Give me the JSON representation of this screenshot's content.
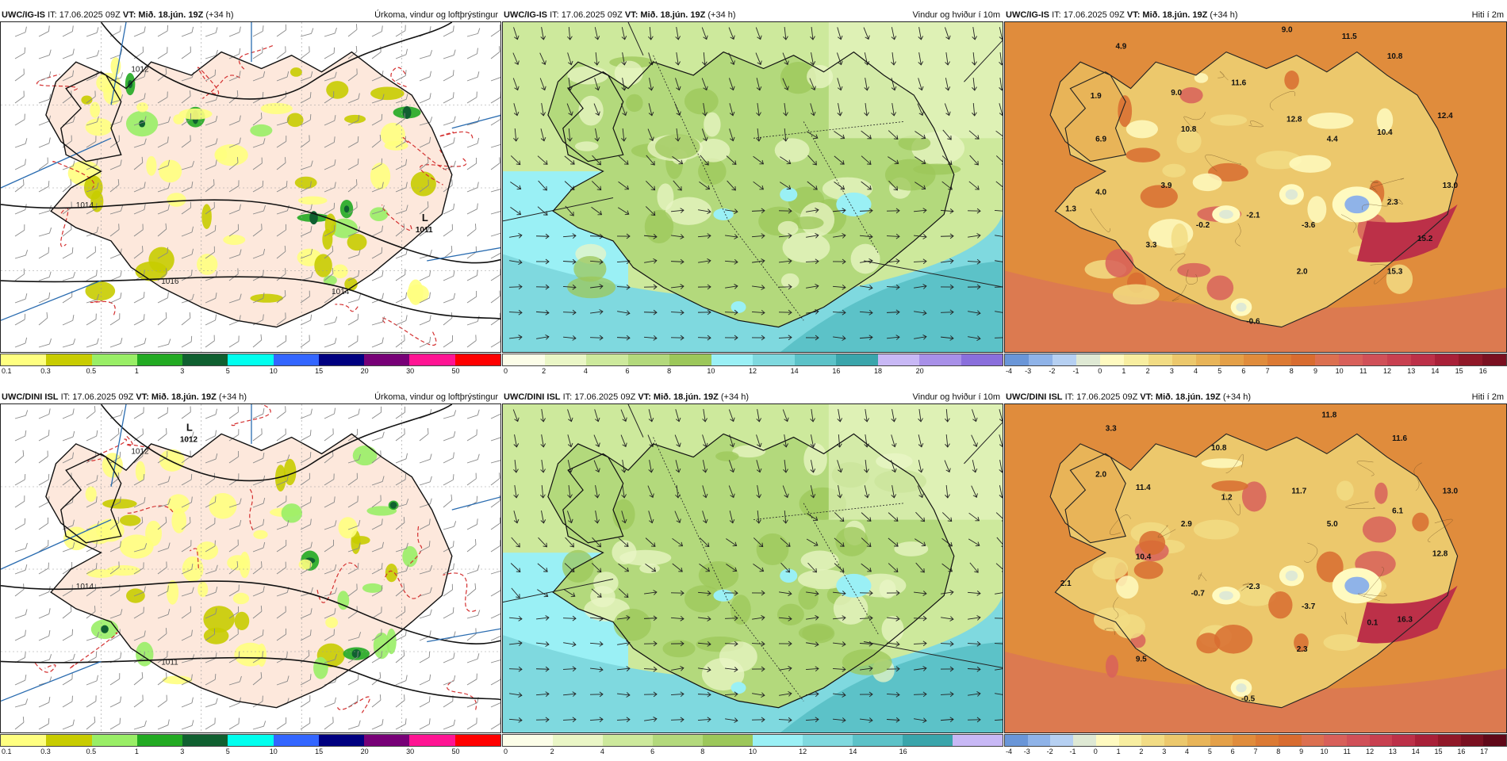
{
  "rows": [
    {
      "model_label": "UWC/IG-IS",
      "panels": [
        {
          "type": "precip",
          "model": "UWC/IG-IS",
          "it": "IT: 17.06.2025 09Z",
          "vt": "VT: Mið. 18.jún. 19Z",
          "lead": "(+34 h)",
          "title": "Úrkoma, vindur og loftþrýstingur",
          "legend_ticks": [
            "0.1",
            "0.3",
            "0.5",
            "1",
            "3",
            "5",
            "10",
            "15",
            "20",
            "30",
            "50"
          ],
          "legend_colors": [
            "#ffff80",
            "#c8cc00",
            "#99ee66",
            "#22aa22",
            "#106030",
            "#00ffee",
            "#3366ff",
            "#000080",
            "#770077",
            "#ff1493",
            "#ff0000"
          ],
          "isobar_labels": [
            "1012",
            "1014",
            "1016",
            "1014"
          ],
          "lows": [
            {
              "symbol": "L",
              "value": "1011"
            }
          ]
        },
        {
          "type": "wind",
          "model": "UWC/IG-IS",
          "it": "IT: 17.06.2025 09Z",
          "vt": "VT: Mið. 18.jún. 19Z",
          "lead": "(+34 h)",
          "title": "Vindur og hviður í 10m",
          "legend_ticks": [
            "0",
            "2",
            "4",
            "6",
            "8",
            "10",
            "12",
            "14",
            "16",
            "18",
            "20"
          ],
          "legend_colors": [
            "#fcfde8",
            "#eaf6c6",
            "#cde99c",
            "#b3d97c",
            "#9cc75a",
            "#9af0f5",
            "#7fd9df",
            "#5cc2c8",
            "#3aa5ab",
            "#c8b8f5",
            "#a890e8",
            "#8a6fdc"
          ]
        },
        {
          "type": "temp",
          "model": "UWC/IG-IS",
          "it": "IT: 17.06.2025 09Z",
          "vt": "VT: Mið. 18.jún. 19Z",
          "lead": "(+34 h)",
          "title": "Hiti í 2m",
          "legend_ticks": [
            "-4",
            "-3",
            "-2",
            "-1",
            "0",
            "1",
            "2",
            "3",
            "4",
            "5",
            "6",
            "7",
            "8",
            "9",
            "10",
            "11",
            "12",
            "13",
            "14",
            "15",
            "16"
          ],
          "legend_colors": [
            "#6a96d8",
            "#8fb3e8",
            "#b6d0f2",
            "#dfe9d4",
            "#fffac0",
            "#f8eea0",
            "#f2dc84",
            "#ecc86c",
            "#e8b458",
            "#e4a048",
            "#e08c3c",
            "#dc7a34",
            "#d86c30",
            "#dc7050",
            "#d8605a",
            "#d05058",
            "#c84050",
            "#bc3048",
            "#a82038",
            "#901828",
            "#7a1020"
          ],
          "temp_labels": [
            "4.9",
            "9.0",
            "11.5",
            "10.8",
            "1.9",
            "9.0",
            "11.6",
            "12.8",
            "12.4",
            "6.9",
            "10.8",
            "4.4",
            "10.4",
            "1.3",
            "4.0",
            "3.9",
            "-0.2",
            "-2.1",
            "13.0",
            "2.3",
            "3.3",
            "-3.6",
            "15.2",
            "2.0",
            "15.3",
            "-0.6"
          ]
        }
      ]
    },
    {
      "model_label": "UWC/DINI ISL",
      "panels": [
        {
          "type": "precip",
          "model": "UWC/DINI ISL",
          "it": "IT: 17.06.2025 09Z",
          "vt": "VT: Mið. 18.jún. 19Z",
          "lead": "(+34 h)",
          "title": "Úrkoma, vindur og loftþrýstingur",
          "legend_ticks": [
            "0.1",
            "0.3",
            "0.5",
            "1",
            "3",
            "5",
            "10",
            "15",
            "20",
            "30",
            "50"
          ],
          "legend_colors": [
            "#ffff80",
            "#c8cc00",
            "#99ee66",
            "#22aa22",
            "#106030",
            "#00ffee",
            "#3366ff",
            "#000080",
            "#770077",
            "#ff1493",
            "#ff0000"
          ],
          "isobar_labels": [
            "1012",
            "1014",
            "1011"
          ],
          "lows": [
            {
              "symbol": "L",
              "value": "1012"
            }
          ]
        },
        {
          "type": "wind",
          "model": "UWC/DINI ISL",
          "it": "IT: 17.06.2025 09Z",
          "vt": "VT: Mið. 18.jún. 19Z",
          "lead": "(+34 h)",
          "title": "Vindur og hviður í 10m",
          "legend_ticks": [
            "0",
            "2",
            "4",
            "6",
            "8",
            "10",
            "12",
            "14",
            "16"
          ],
          "legend_colors": [
            "#fcfde8",
            "#eaf6c6",
            "#cde99c",
            "#b3d97c",
            "#9cc75a",
            "#9af0f5",
            "#7fd9df",
            "#5cc2c8",
            "#3aa5ab",
            "#c8b8f5"
          ]
        },
        {
          "type": "temp",
          "model": "UWC/DINI ISL",
          "it": "IT: 17.06.2025 09Z",
          "vt": "VT: Mið. 18.jún. 19Z",
          "lead": "(+34 h)",
          "title": "Hiti í 2m",
          "legend_ticks": [
            "-4",
            "-3",
            "-2",
            "-1",
            "0",
            "1",
            "2",
            "3",
            "4",
            "5",
            "6",
            "7",
            "8",
            "9",
            "10",
            "11",
            "12",
            "13",
            "14",
            "15",
            "16",
            "17"
          ],
          "legend_colors": [
            "#6a96d8",
            "#8fb3e8",
            "#b6d0f2",
            "#dfe9d4",
            "#fffac0",
            "#f8eea0",
            "#f2dc84",
            "#ecc86c",
            "#e8b458",
            "#e4a048",
            "#e08c3c",
            "#dc7a34",
            "#d86c30",
            "#dc7050",
            "#d8605a",
            "#d05058",
            "#c84050",
            "#bc3048",
            "#a82038",
            "#901828",
            "#7a1020",
            "#600818"
          ],
          "temp_labels": [
            "11.8",
            "3.3",
            "11.6",
            "2.0",
            "10.8",
            "11.4",
            "1.2",
            "11.7",
            "13.0",
            "6.1",
            "2.9",
            "5.0",
            "10.4",
            "12.8",
            "2.1",
            "-0.7",
            "-2.3",
            "-3.7",
            "0.1",
            "16.3",
            "9.5",
            "2.3",
            "-0.5"
          ]
        }
      ]
    }
  ]
}
